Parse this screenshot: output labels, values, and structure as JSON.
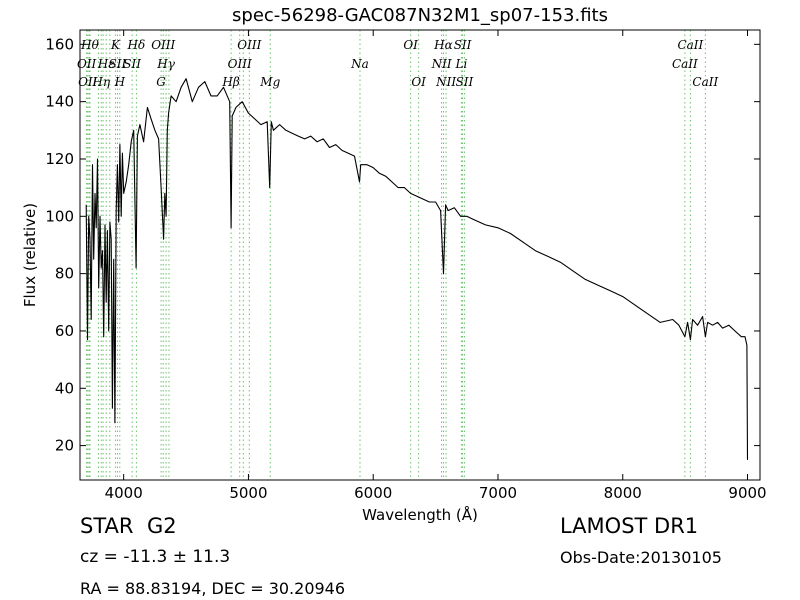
{
  "title": "spec-56298-GAC087N32M1_sp07-153.fits",
  "info": {
    "object_class": "STAR",
    "subclass": "G2",
    "survey": "LAMOST DR1",
    "cz": "cz = -11.3 ± 11.3",
    "obs_date": "Obs-Date:20130105",
    "radec": "RA = 88.83194, DEC = 30.20946"
  },
  "chart_data": {
    "type": "line",
    "xlabel": "Wavelength (Å)",
    "ylabel": "Flux (relative)",
    "xlim": [
      3650,
      9100
    ],
    "ylim": [
      8,
      165
    ],
    "xticks": [
      4000,
      5000,
      6000,
      7000,
      8000,
      9000
    ],
    "yticks": [
      20,
      40,
      60,
      80,
      100,
      120,
      140,
      160
    ],
    "line_color": "#000000",
    "marker_color": "#6ac46a",
    "series": [
      {
        "x": [
          3700,
          3710,
          3720,
          3730,
          3740,
          3750,
          3760,
          3770,
          3780,
          3790,
          3800,
          3810,
          3820,
          3830,
          3840,
          3850,
          3860,
          3870,
          3880,
          3890,
          3900,
          3910,
          3920,
          3930,
          3940,
          3950,
          3960,
          3970,
          3980,
          3990,
          4000,
          4020,
          4040,
          4060,
          4080,
          4100,
          4110,
          4130,
          4160,
          4190,
          4220,
          4250,
          4280,
          4300,
          4320,
          4330,
          4340,
          4350,
          4360,
          4380,
          4420,
          4460,
          4500,
          4550,
          4600,
          4650,
          4700,
          4750,
          4800,
          4850,
          4861,
          4870,
          4900,
          4950,
          5000,
          5050,
          5100,
          5150,
          5170,
          5183,
          5200,
          5250,
          5300,
          5350,
          5400,
          5450,
          5500,
          5550,
          5600,
          5650,
          5700,
          5750,
          5800,
          5850,
          5890,
          5900,
          5950,
          6000,
          6050,
          6100,
          6150,
          6200,
          6250,
          6300,
          6350,
          6400,
          6450,
          6500,
          6540,
          6563,
          6580,
          6600,
          6650,
          6700,
          6750,
          6800,
          6900,
          7000,
          7100,
          7200,
          7300,
          7400,
          7500,
          7600,
          7700,
          7800,
          7900,
          8000,
          8100,
          8200,
          8300,
          8400,
          8450,
          8498,
          8520,
          8542,
          8560,
          8600,
          8640,
          8662,
          8680,
          8720,
          8760,
          8800,
          8850,
          8900,
          8950,
          8980,
          8995,
          9000
        ],
        "y": [
          104,
          57,
          100,
          92,
          64,
          118,
          85,
          108,
          96,
          120,
          75,
          100,
          82,
          88,
          58,
          97,
          70,
          95,
          60,
          98,
          92,
          33,
          85,
          28,
          102,
          118,
          98,
          125,
          100,
          122,
          108,
          112,
          118,
          126,
          130,
          82,
          128,
          132,
          126,
          138,
          134,
          130,
          127,
          110,
          92,
          108,
          100,
          130,
          136,
          142,
          140,
          145,
          148,
          140,
          145,
          147,
          142,
          142,
          145,
          140,
          96,
          135,
          138,
          140,
          136,
          134,
          132,
          133,
          110,
          133,
          130,
          132,
          130,
          129,
          128,
          127,
          128,
          126,
          127,
          124,
          125,
          123,
          122,
          121,
          112,
          118,
          118,
          117,
          115,
          114,
          112,
          110,
          110,
          108,
          107,
          106,
          105,
          105,
          102,
          80,
          104,
          102,
          103,
          100,
          100,
          99,
          97,
          96,
          94,
          91,
          88,
          86,
          84,
          81,
          78,
          76,
          74,
          72,
          69,
          66,
          63,
          64,
          62,
          58,
          63,
          57,
          64,
          62,
          65,
          58,
          63,
          62,
          63,
          61,
          62,
          60,
          58,
          58,
          55,
          15
        ]
      }
    ],
    "line_markers": [
      {
        "x": 3703,
        "label": "OII",
        "row": 2
      },
      {
        "x": 3712,
        "label": "OII",
        "row": 3
      },
      {
        "x": 3723,
        "label": "",
        "row": 0
      },
      {
        "x": 3730,
        "label": "Hθ",
        "row": 1
      },
      {
        "x": 3798,
        "label": "",
        "row": 0
      },
      {
        "x": 3820,
        "label": "Hη",
        "row": 3
      },
      {
        "x": 3835,
        "label": "",
        "row": 0
      },
      {
        "x": 3860,
        "label": "Hε",
        "row": 2
      },
      {
        "x": 3889,
        "label": "",
        "row": 0
      },
      {
        "x": 3934,
        "label": "K",
        "row": 1
      },
      {
        "x": 3950,
        "label": "SII",
        "row": 2
      },
      {
        "x": 3969,
        "label": "H",
        "row": 3
      },
      {
        "x": 4068,
        "label": "SII",
        "row": 2
      },
      {
        "x": 4102,
        "label": "Hδ",
        "row": 1
      },
      {
        "x": 4300,
        "label": "G",
        "row": 3
      },
      {
        "x": 4317,
        "label": "OIII",
        "row": 1
      },
      {
        "x": 4340,
        "label": "Hγ",
        "row": 2
      },
      {
        "x": 4363,
        "label": "",
        "row": 0
      },
      {
        "x": 4861,
        "label": "Hβ",
        "row": 3
      },
      {
        "x": 4930,
        "label": "OIII",
        "row": 2
      },
      {
        "x": 4959,
        "label": "",
        "row": 0
      },
      {
        "x": 5007,
        "label": "OIII",
        "row": 1
      },
      {
        "x": 5175,
        "label": "Mg",
        "row": 3
      },
      {
        "x": 5894,
        "label": "Na",
        "row": 2
      },
      {
        "x": 6300,
        "label": "OI",
        "row": 1
      },
      {
        "x": 6364,
        "label": "OI",
        "row": 3
      },
      {
        "x": 6548,
        "label": "NII",
        "row": 2
      },
      {
        "x": 6563,
        "label": "Hα",
        "row": 1
      },
      {
        "x": 6584,
        "label": "NII",
        "row": 3
      },
      {
        "x": 6707,
        "label": "Li",
        "row": 2
      },
      {
        "x": 6716,
        "label": "SII",
        "row": 1
      },
      {
        "x": 6731,
        "label": "SII",
        "row": 3
      },
      {
        "x": 8498,
        "label": "CaII",
        "row": 2
      },
      {
        "x": 8542,
        "label": "CaII",
        "row": 1
      },
      {
        "x": 8662,
        "label": "CaII",
        "row": 3
      }
    ]
  }
}
